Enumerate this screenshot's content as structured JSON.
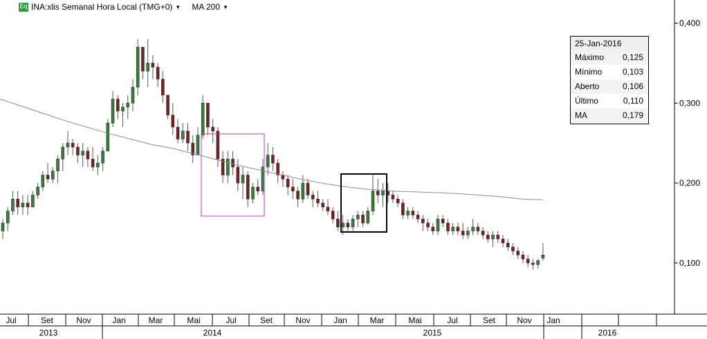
{
  "header": {
    "symbol_icon": "Eq",
    "symbol_label": "INA:xlis Semanal Hora Local (TMG+0)",
    "indicator_label": "MA 200"
  },
  "info_box": {
    "date": "25-Jan-2016",
    "rows": [
      {
        "label": "Máximo",
        "value": "0,125"
      },
      {
        "label": "Mínimo",
        "value": "0,103"
      },
      {
        "label": "Aberto",
        "value": "0,106"
      },
      {
        "label": "Último",
        "value": "0,110"
      },
      {
        "label": "MA",
        "value": "0,179"
      }
    ]
  },
  "chart_data": {
    "type": "candlestick",
    "y_axis": {
      "position": "right",
      "range": [
        0.036,
        0.416
      ],
      "ticks": [
        0.4,
        0.3,
        0.2,
        0.1
      ],
      "tick_labels": [
        "0,400",
        "0,300",
        "0,200",
        "0,100"
      ]
    },
    "x_axis": {
      "month_labels": [
        "Jul",
        "Set",
        "Nov",
        "Jan",
        "Mar",
        "Mai",
        "Jul",
        "Set",
        "Nov",
        "Jan",
        "Mar",
        "Mai",
        "Jul",
        "Set",
        "Nov",
        "Jan"
      ],
      "year_labels": [
        "2013",
        "2014",
        "2015",
        "2016"
      ]
    },
    "up_color": "#3a7d3a",
    "down_color": "#7a1f1f",
    "ma_color": "#8c8c8c",
    "highlight_colors": [
      "#cc33cc",
      "#000000"
    ],
    "candles": [
      [
        0.14,
        0.155,
        0.13,
        0.15
      ],
      [
        0.15,
        0.17,
        0.14,
        0.165
      ],
      [
        0.165,
        0.19,
        0.16,
        0.18
      ],
      [
        0.18,
        0.19,
        0.16,
        0.17
      ],
      [
        0.17,
        0.185,
        0.16,
        0.175
      ],
      [
        0.175,
        0.185,
        0.16,
        0.17
      ],
      [
        0.17,
        0.19,
        0.17,
        0.185
      ],
      [
        0.185,
        0.2,
        0.18,
        0.195
      ],
      [
        0.195,
        0.215,
        0.19,
        0.21
      ],
      [
        0.21,
        0.225,
        0.2,
        0.205
      ],
      [
        0.205,
        0.22,
        0.2,
        0.215
      ],
      [
        0.215,
        0.235,
        0.2,
        0.23
      ],
      [
        0.23,
        0.25,
        0.215,
        0.245
      ],
      [
        0.245,
        0.265,
        0.235,
        0.25
      ],
      [
        0.25,
        0.255,
        0.235,
        0.245
      ],
      [
        0.245,
        0.25,
        0.225,
        0.235
      ],
      [
        0.235,
        0.25,
        0.22,
        0.24
      ],
      [
        0.24,
        0.245,
        0.22,
        0.23
      ],
      [
        0.23,
        0.245,
        0.215,
        0.22
      ],
      [
        0.22,
        0.235,
        0.21,
        0.225
      ],
      [
        0.225,
        0.245,
        0.215,
        0.24
      ],
      [
        0.24,
        0.28,
        0.24,
        0.275
      ],
      [
        0.275,
        0.315,
        0.27,
        0.305
      ],
      [
        0.305,
        0.31,
        0.28,
        0.29
      ],
      [
        0.29,
        0.3,
        0.27,
        0.295
      ],
      [
        0.295,
        0.31,
        0.28,
        0.3
      ],
      [
        0.3,
        0.33,
        0.29,
        0.32
      ],
      [
        0.32,
        0.38,
        0.31,
        0.37
      ],
      [
        0.37,
        0.37,
        0.33,
        0.34
      ],
      [
        0.34,
        0.38,
        0.32,
        0.35
      ],
      [
        0.35,
        0.36,
        0.33,
        0.345
      ],
      [
        0.345,
        0.35,
        0.32,
        0.33
      ],
      [
        0.33,
        0.34,
        0.3,
        0.31
      ],
      [
        0.31,
        0.31,
        0.28,
        0.285
      ],
      [
        0.285,
        0.3,
        0.26,
        0.27
      ],
      [
        0.27,
        0.28,
        0.25,
        0.255
      ],
      [
        0.255,
        0.275,
        0.25,
        0.265
      ],
      [
        0.265,
        0.275,
        0.24,
        0.25
      ],
      [
        0.25,
        0.26,
        0.225,
        0.235
      ],
      [
        0.235,
        0.27,
        0.235,
        0.26
      ],
      [
        0.26,
        0.31,
        0.255,
        0.3
      ],
      [
        0.3,
        0.3,
        0.26,
        0.27
      ],
      [
        0.27,
        0.28,
        0.25,
        0.265
      ],
      [
        0.265,
        0.27,
        0.22,
        0.23
      ],
      [
        0.23,
        0.24,
        0.2,
        0.21
      ],
      [
        0.21,
        0.24,
        0.2,
        0.23
      ],
      [
        0.23,
        0.24,
        0.21,
        0.22
      ],
      [
        0.22,
        0.23,
        0.19,
        0.2
      ],
      [
        0.2,
        0.22,
        0.18,
        0.21
      ],
      [
        0.21,
        0.215,
        0.17,
        0.18
      ],
      [
        0.18,
        0.2,
        0.175,
        0.195
      ],
      [
        0.195,
        0.205,
        0.185,
        0.19
      ],
      [
        0.19,
        0.23,
        0.185,
        0.22
      ],
      [
        0.22,
        0.25,
        0.21,
        0.235
      ],
      [
        0.235,
        0.245,
        0.215,
        0.225
      ],
      [
        0.225,
        0.23,
        0.2,
        0.21
      ],
      [
        0.21,
        0.215,
        0.195,
        0.205
      ],
      [
        0.205,
        0.21,
        0.185,
        0.195
      ],
      [
        0.195,
        0.205,
        0.18,
        0.19
      ],
      [
        0.19,
        0.195,
        0.17,
        0.18
      ],
      [
        0.18,
        0.21,
        0.175,
        0.2
      ],
      [
        0.2,
        0.205,
        0.18,
        0.185
      ],
      [
        0.185,
        0.19,
        0.17,
        0.18
      ],
      [
        0.18,
        0.19,
        0.17,
        0.175
      ],
      [
        0.175,
        0.18,
        0.165,
        0.17
      ],
      [
        0.17,
        0.18,
        0.16,
        0.165
      ],
      [
        0.165,
        0.17,
        0.15,
        0.155
      ],
      [
        0.155,
        0.165,
        0.14,
        0.145
      ],
      [
        0.145,
        0.16,
        0.135,
        0.15
      ],
      [
        0.15,
        0.155,
        0.14,
        0.145
      ],
      [
        0.145,
        0.16,
        0.14,
        0.155
      ],
      [
        0.155,
        0.165,
        0.145,
        0.16
      ],
      [
        0.16,
        0.165,
        0.145,
        0.15
      ],
      [
        0.15,
        0.17,
        0.148,
        0.165
      ],
      [
        0.165,
        0.21,
        0.16,
        0.19
      ],
      [
        0.19,
        0.205,
        0.175,
        0.185
      ],
      [
        0.185,
        0.2,
        0.17,
        0.19
      ],
      [
        0.19,
        0.2,
        0.175,
        0.185
      ],
      [
        0.185,
        0.19,
        0.175,
        0.18
      ],
      [
        0.18,
        0.185,
        0.17,
        0.175
      ],
      [
        0.175,
        0.18,
        0.155,
        0.16
      ],
      [
        0.16,
        0.17,
        0.155,
        0.165
      ],
      [
        0.165,
        0.17,
        0.155,
        0.16
      ],
      [
        0.16,
        0.165,
        0.15,
        0.155
      ],
      [
        0.155,
        0.16,
        0.14,
        0.15
      ],
      [
        0.15,
        0.155,
        0.14,
        0.145
      ],
      [
        0.145,
        0.15,
        0.135,
        0.14
      ],
      [
        0.14,
        0.16,
        0.135,
        0.155
      ],
      [
        0.155,
        0.16,
        0.145,
        0.15
      ],
      [
        0.15,
        0.155,
        0.135,
        0.14
      ],
      [
        0.14,
        0.15,
        0.135,
        0.145
      ],
      [
        0.145,
        0.15,
        0.135,
        0.14
      ],
      [
        0.14,
        0.15,
        0.13,
        0.135
      ],
      [
        0.135,
        0.145,
        0.13,
        0.14
      ],
      [
        0.14,
        0.155,
        0.135,
        0.145
      ],
      [
        0.145,
        0.15,
        0.135,
        0.14
      ],
      [
        0.14,
        0.145,
        0.13,
        0.135
      ],
      [
        0.135,
        0.14,
        0.125,
        0.13
      ],
      [
        0.13,
        0.14,
        0.12,
        0.135
      ],
      [
        0.135,
        0.14,
        0.125,
        0.13
      ],
      [
        0.13,
        0.135,
        0.12,
        0.125
      ],
      [
        0.125,
        0.13,
        0.115,
        0.12
      ],
      [
        0.12,
        0.125,
        0.11,
        0.115
      ],
      [
        0.115,
        0.12,
        0.105,
        0.11
      ],
      [
        0.11,
        0.115,
        0.1,
        0.105
      ],
      [
        0.105,
        0.11,
        0.095,
        0.1
      ],
      [
        0.1,
        0.105,
        0.092,
        0.098
      ],
      [
        0.098,
        0.105,
        0.093,
        0.103
      ],
      [
        0.106,
        0.125,
        0.103,
        0.11
      ]
    ],
    "ma": [
      0.305,
      0.296,
      0.287,
      0.278,
      0.27,
      0.262,
      0.255,
      0.248,
      0.243,
      0.236,
      0.229,
      0.222,
      0.216,
      0.21,
      0.204,
      0.199,
      0.195,
      0.192,
      0.19,
      0.189,
      0.188,
      0.187,
      0.185,
      0.183,
      0.18,
      0.179
    ]
  }
}
